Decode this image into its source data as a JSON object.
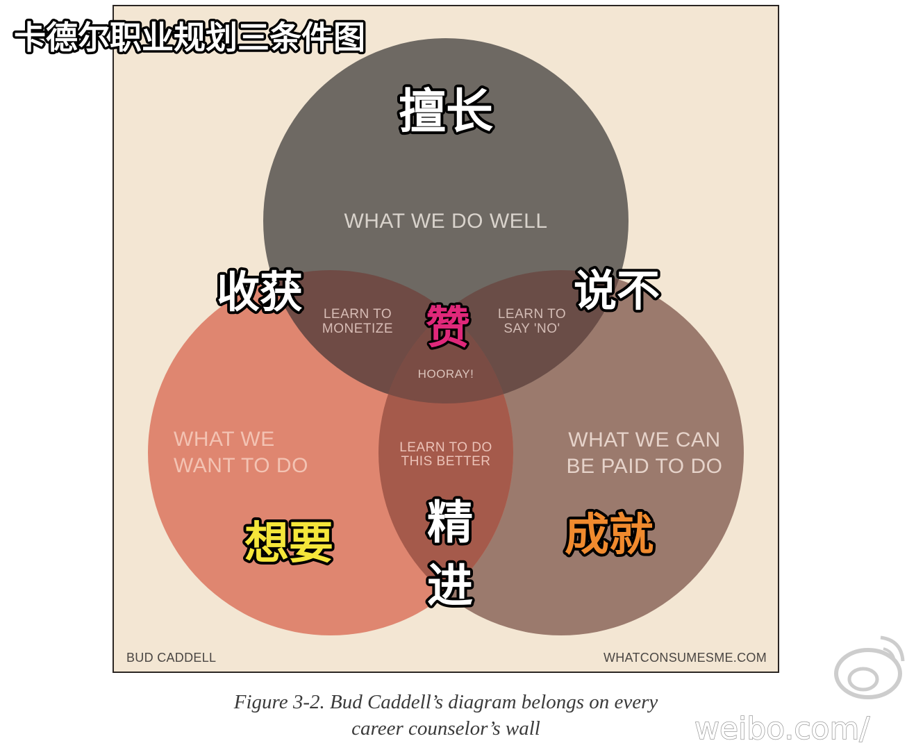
{
  "overlay_title": "卡德尔职业规划三条件图",
  "diagram": {
    "circles": {
      "top": {
        "label": "WHAT WE DO WELL",
        "cn_label": "擅长",
        "color": "#6e6963"
      },
      "left": {
        "label_line1": "WHAT WE",
        "label_line2": "WANT TO DO",
        "cn_label": "想要",
        "color": "#df8670"
      },
      "right": {
        "label_line1": "WHAT WE CAN",
        "label_line2": "BE PAID TO DO",
        "cn_label": "成就",
        "color": "#9b7a6d"
      }
    },
    "intersections": {
      "top_left": {
        "label_line1": "LEARN TO",
        "label_line2": "MONETIZE",
        "cn_label": "收获"
      },
      "top_right": {
        "label_line1": "LEARN TO",
        "label_line2": "SAY 'NO'",
        "cn_label": "说不"
      },
      "left_right": {
        "label_line1": "LEARN TO DO",
        "label_line2": "THIS BETTER",
        "cn_label_line1": "精",
        "cn_label_line2": "进"
      },
      "center": {
        "label": "HOORAY!",
        "cn_label": "赞"
      }
    },
    "credit_left": "BUD CADDELL",
    "credit_right": "WHATCONSUMESME.COM",
    "background_color": "#f3e6d3"
  },
  "caption": {
    "line1": "Figure 3-2. Bud Caddell’s diagram belongs on every",
    "line2": "career counselor’s wall"
  },
  "watermark": "weibo.com/",
  "colors": {
    "cn_white": "#ffffff",
    "cn_yellow": "#f5e63a",
    "cn_orange": "#f08a2e",
    "cn_magenta": "#e0287a"
  }
}
